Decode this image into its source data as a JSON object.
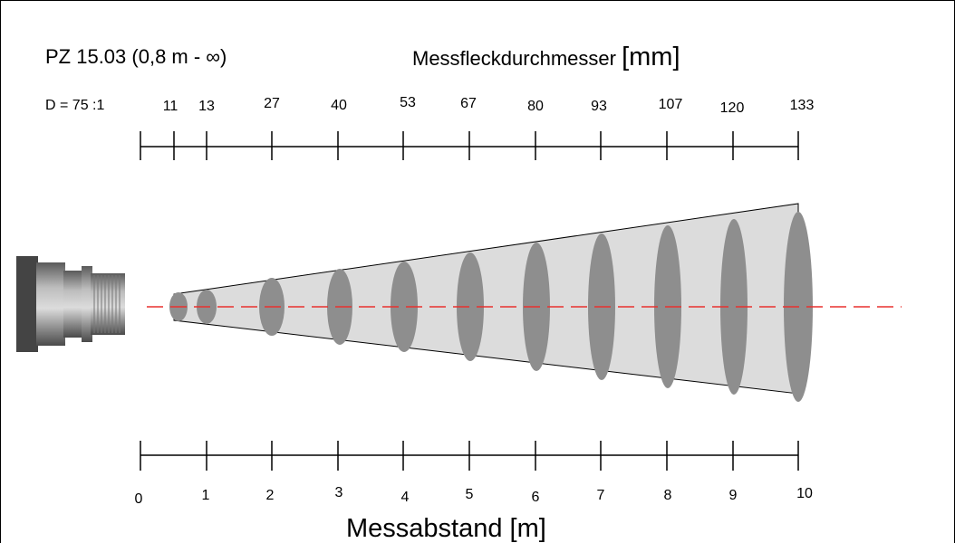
{
  "title": "PZ 15.03 (0,8 m - ∞)",
  "top_axis_title": {
    "text": "Messfleckdurchmesser ",
    "unit": "[mm]"
  },
  "ratio_label": "D = 75 :1",
  "bottom_axis_title": "Messabstand [m]",
  "colors": {
    "laser_line": "#e8312f",
    "cone_fill": "#dcdcdc",
    "spot_fill": "#8e8e8e",
    "axis": "#000000"
  },
  "chart_data": {
    "type": "diagram",
    "distances_m": [
      0,
      1,
      2,
      3,
      4,
      5,
      6,
      7,
      8,
      9,
      10
    ],
    "distance_labels": [
      "0",
      "1",
      "2",
      "3",
      "4",
      "5",
      "6",
      "7",
      "8",
      "9",
      "10"
    ],
    "spot_diameter_labels": [
      "11",
      "13",
      "27",
      "40",
      "53",
      "67",
      "80",
      "93",
      "107",
      "120",
      "133"
    ],
    "spot_positions_m": [
      0.5,
      1,
      2,
      3,
      4,
      5,
      6,
      7,
      8,
      9,
      10
    ],
    "spot_diameters_mm": [
      11,
      13,
      27,
      40,
      53,
      67,
      80,
      93,
      107,
      120,
      133
    ]
  }
}
